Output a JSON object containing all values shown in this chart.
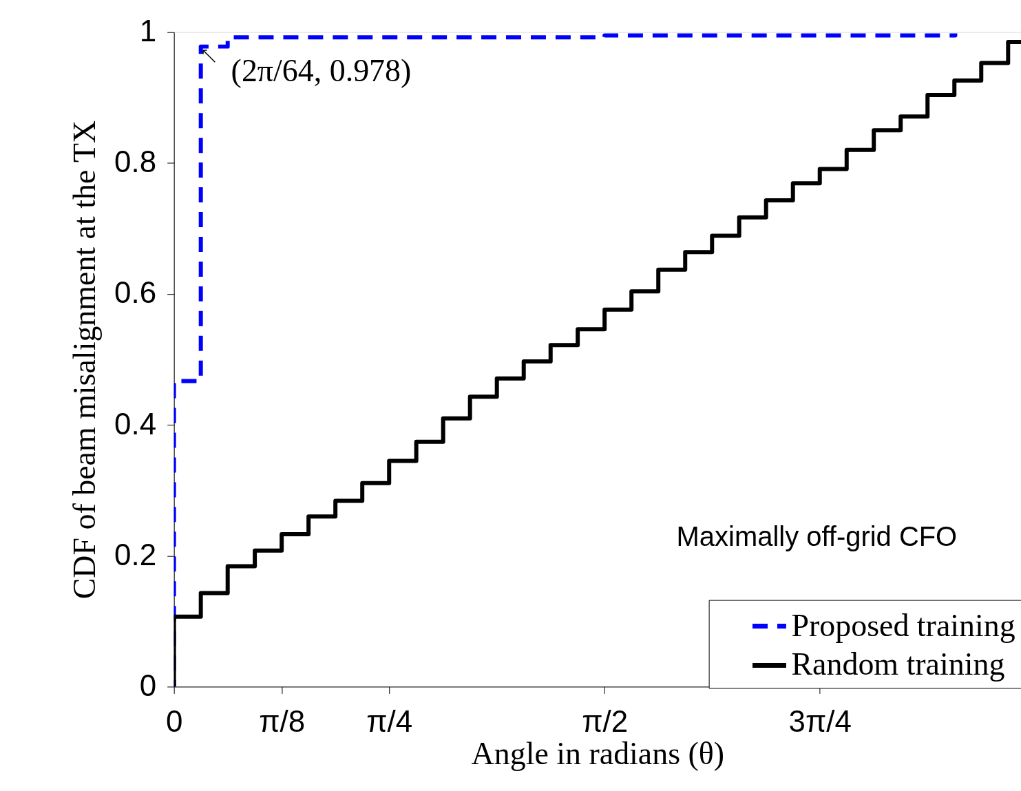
{
  "chart_data": {
    "type": "step",
    "xlabel": "Angle in radians (θ)",
    "ylabel": "CDF of beam misalignment at the TX",
    "xlim": [
      0,
      3.09
    ],
    "ylim": [
      0,
      1
    ],
    "xticks": [
      0,
      {
        "value": 0.393,
        "label": "π/8"
      },
      {
        "value": 0.785,
        "label": "π/4"
      },
      {
        "value": 1.571,
        "label": "π/2"
      },
      {
        "value": 2.356,
        "label": "3π/4"
      }
    ],
    "yticks": [
      0,
      0.2,
      0.4,
      0.6,
      0.8,
      1
    ],
    "grid": false,
    "legend": "bottom right",
    "series": [
      {
        "name": "Proposed training",
        "color": "#0000ff",
        "line_style": "dashed",
        "x": [
          0,
          0,
          0.098,
          0.196,
          1.571,
          2.85
        ],
        "values": [
          0,
          0.467,
          0.978,
          0.992,
          0.995,
          0.998
        ]
      },
      {
        "name": "Random training",
        "color": "#000000",
        "line_style": "solid",
        "x": [
          0,
          0,
          0.098,
          0.196,
          0.295,
          0.393,
          0.491,
          0.589,
          0.687,
          0.785,
          0.884,
          0.982,
          1.08,
          1.178,
          1.276,
          1.374,
          1.473,
          1.571,
          1.669,
          1.767,
          1.865,
          1.963,
          2.062,
          2.16,
          2.258,
          2.356,
          2.454,
          2.553,
          2.651,
          2.749,
          2.847,
          2.945,
          3.043,
          3.09
        ],
        "values": [
          0,
          0.107,
          0.143,
          0.184,
          0.208,
          0.233,
          0.26,
          0.284,
          0.311,
          0.345,
          0.374,
          0.41,
          0.443,
          0.471,
          0.497,
          0.522,
          0.546,
          0.576,
          0.604,
          0.637,
          0.664,
          0.689,
          0.717,
          0.743,
          0.769,
          0.791,
          0.82,
          0.85,
          0.871,
          0.904,
          0.926,
          0.953,
          0.985,
          0.985
        ]
      }
    ],
    "annotations": [
      {
        "text": "(2π/64, 0.978)",
        "x": 0.098,
        "y": 0.978
      },
      "Maximally off-grid CFO"
    ]
  }
}
